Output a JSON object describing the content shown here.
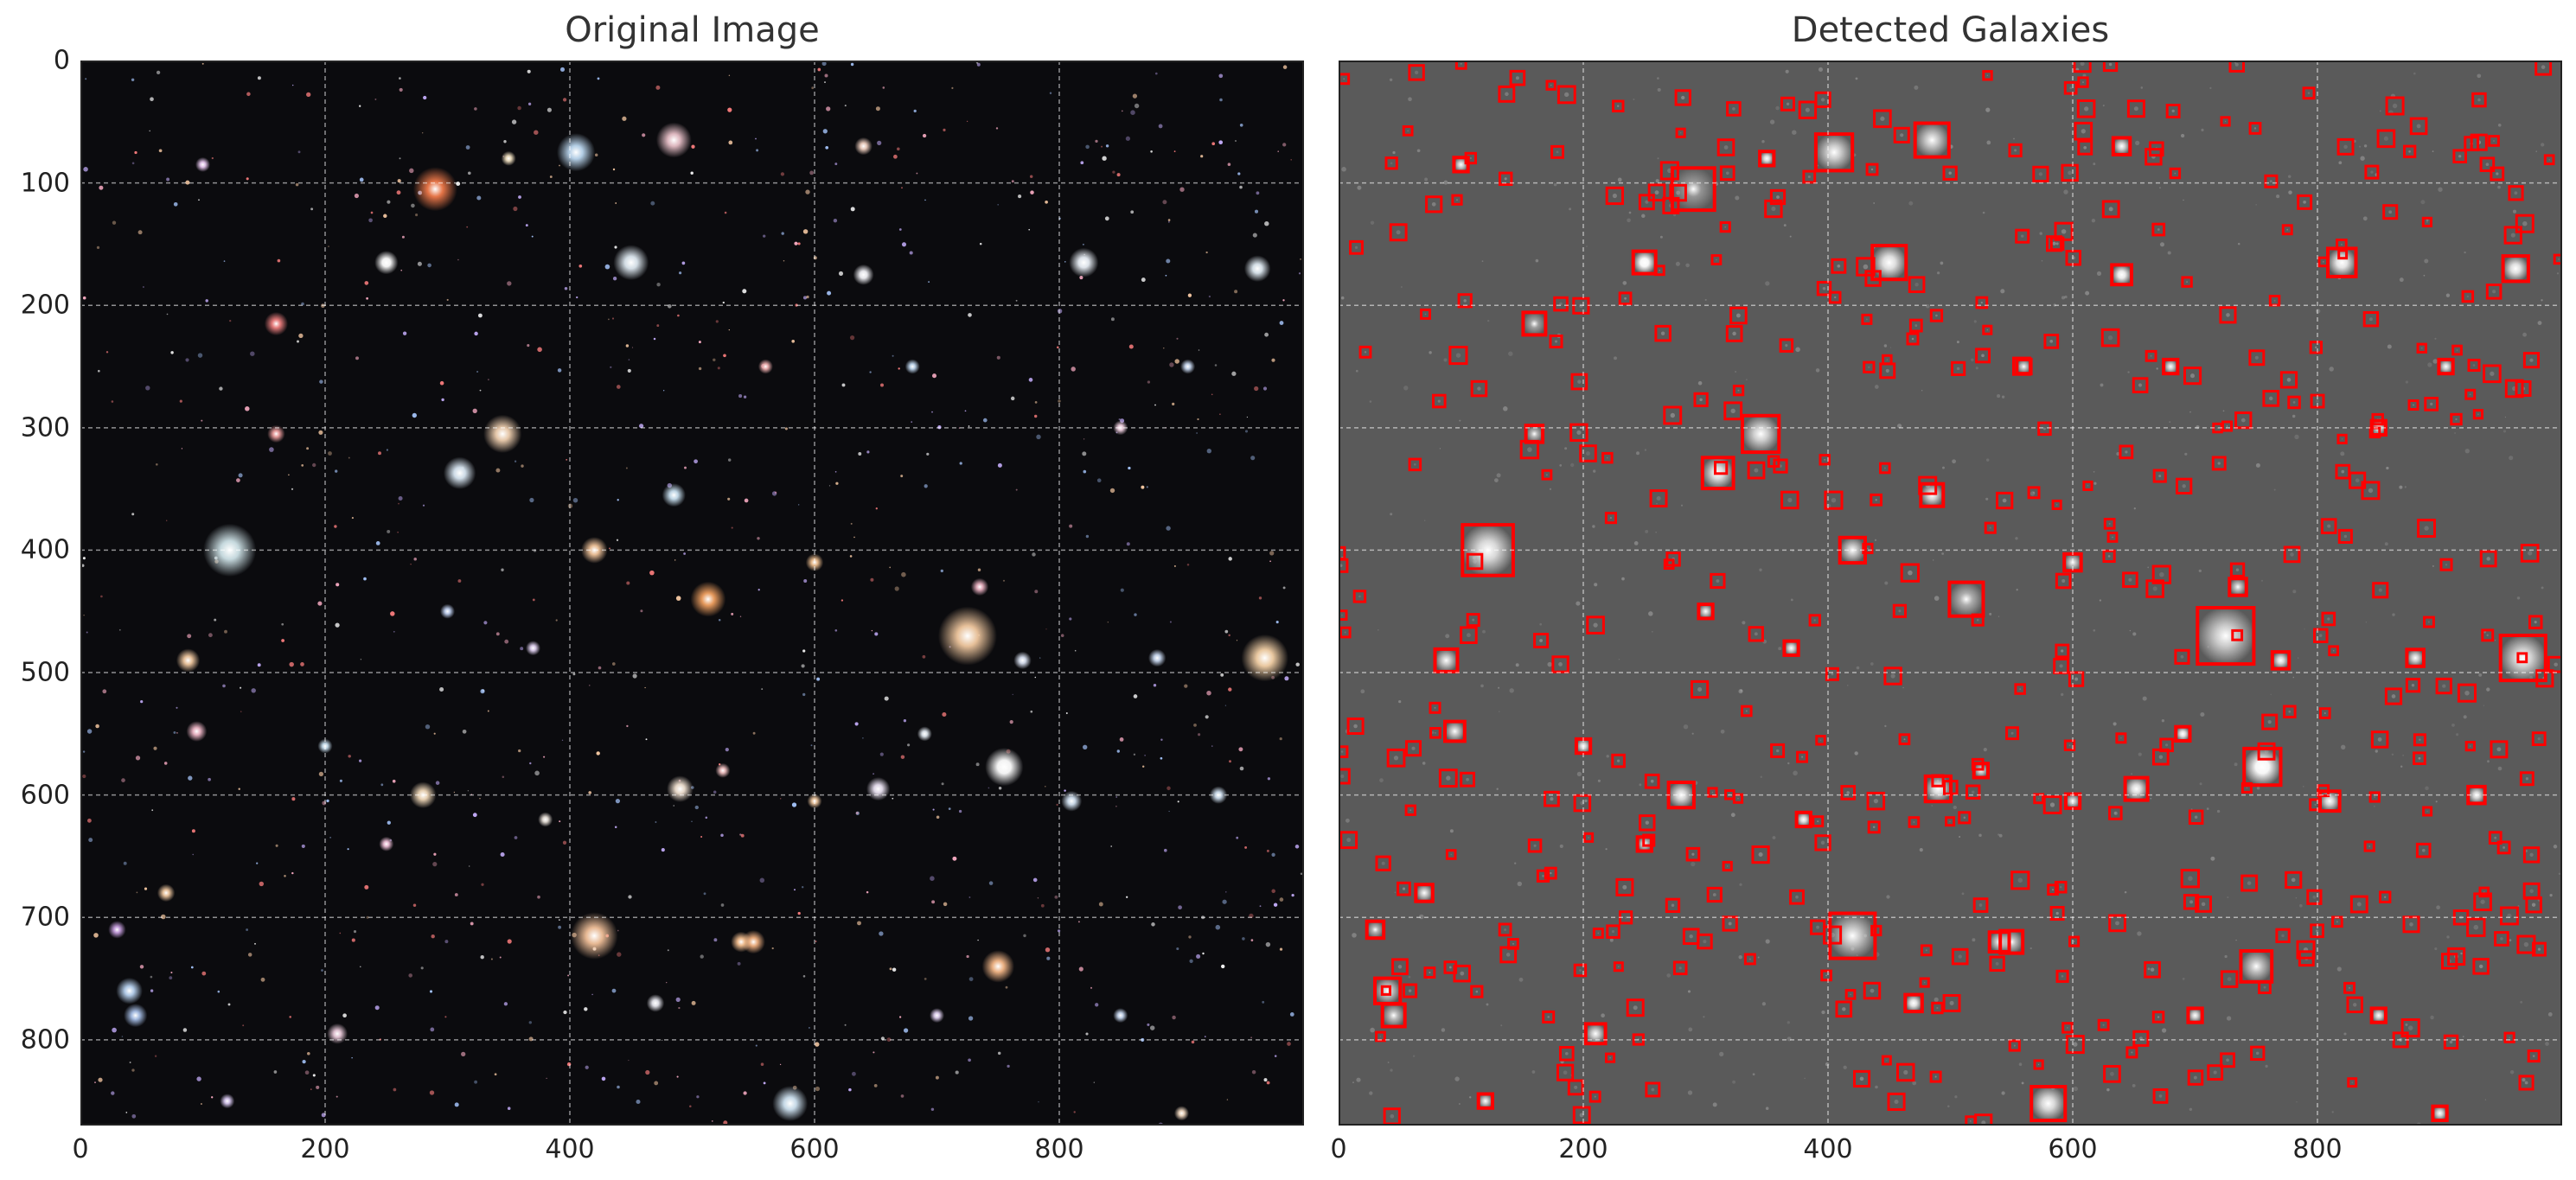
{
  "panels": [
    {
      "title": "Original Image",
      "image_kind": "color",
      "background": "#0b0b0e",
      "xticks": [
        "0",
        "200",
        "400",
        "600",
        "800"
      ],
      "yticks": [
        "0",
        "100",
        "200",
        "300",
        "400",
        "500",
        "600",
        "700",
        "800"
      ]
    },
    {
      "title": "Detected Galaxies",
      "image_kind": "grayscale-with-boxes",
      "background": "#5a5a5a",
      "box_color": "#ff0000",
      "xticks": [
        "0",
        "200",
        "400",
        "600",
        "800"
      ],
      "yticks": []
    }
  ],
  "chart_data": {
    "type": "image",
    "x_range": [
      0,
      1000
    ],
    "y_range": [
      870,
      0
    ],
    "grid": true,
    "galaxies": [
      {
        "x": 122,
        "y": 400,
        "r": 18,
        "color": "#cfe3e8"
      },
      {
        "x": 725,
        "y": 470,
        "r": 20,
        "color": "#f2c9a0"
      },
      {
        "x": 420,
        "y": 715,
        "r": 16,
        "color": "#f2c19a"
      },
      {
        "x": 968,
        "y": 488,
        "r": 16,
        "color": "#f5d2a8"
      },
      {
        "x": 290,
        "y": 105,
        "r": 15,
        "color": "#f07a4a"
      },
      {
        "x": 405,
        "y": 75,
        "r": 13,
        "color": "#bcd8f0"
      },
      {
        "x": 485,
        "y": 65,
        "r": 12,
        "color": "#e8c0c8"
      },
      {
        "x": 755,
        "y": 577,
        "r": 13,
        "color": "#ffffff"
      },
      {
        "x": 345,
        "y": 305,
        "r": 13,
        "color": "#f0d0b0"
      },
      {
        "x": 310,
        "y": 337,
        "r": 11,
        "color": "#d8e6f2"
      },
      {
        "x": 450,
        "y": 165,
        "r": 12,
        "color": "#dde8f0"
      },
      {
        "x": 513,
        "y": 440,
        "r": 12,
        "color": "#f0a060"
      },
      {
        "x": 750,
        "y": 740,
        "r": 11,
        "color": "#f5b888"
      },
      {
        "x": 580,
        "y": 852,
        "r": 12,
        "color": "#cfe3f2"
      },
      {
        "x": 820,
        "y": 165,
        "r": 10,
        "color": "#e8eef5"
      },
      {
        "x": 962,
        "y": 170,
        "r": 9,
        "color": "#dde8f0"
      },
      {
        "x": 280,
        "y": 600,
        "r": 9,
        "color": "#f0d8b8"
      },
      {
        "x": 490,
        "y": 595,
        "r": 9,
        "color": "#f0e0d0"
      },
      {
        "x": 420,
        "y": 400,
        "r": 9,
        "color": "#f2c49a"
      },
      {
        "x": 40,
        "y": 760,
        "r": 9,
        "color": "#b8d2f0"
      },
      {
        "x": 160,
        "y": 215,
        "r": 8,
        "color": "#f08080"
      },
      {
        "x": 250,
        "y": 165,
        "r": 8,
        "color": "#ffffff"
      },
      {
        "x": 485,
        "y": 355,
        "r": 8,
        "color": "#c8e0f0"
      },
      {
        "x": 550,
        "y": 720,
        "r": 8,
        "color": "#f0b080"
      },
      {
        "x": 652,
        "y": 595,
        "r": 8,
        "color": "#e8e0f0"
      },
      {
        "x": 88,
        "y": 490,
        "r": 8,
        "color": "#f0c8a0"
      },
      {
        "x": 45,
        "y": 780,
        "r": 8,
        "color": "#a8c0e8"
      },
      {
        "x": 810,
        "y": 605,
        "r": 7,
        "color": "#d0e0f0"
      },
      {
        "x": 95,
        "y": 548,
        "r": 7,
        "color": "#f0b8c8"
      },
      {
        "x": 540,
        "y": 720,
        "r": 7,
        "color": "#f5c090"
      },
      {
        "x": 640,
        "y": 175,
        "r": 7,
        "color": "#f0f0f5"
      },
      {
        "x": 210,
        "y": 795,
        "r": 7,
        "color": "#e8c8d8"
      },
      {
        "x": 470,
        "y": 770,
        "r": 6,
        "color": "#e8e8f0"
      },
      {
        "x": 640,
        "y": 70,
        "r": 6,
        "color": "#f0d0c0"
      },
      {
        "x": 600,
        "y": 410,
        "r": 6,
        "color": "#f0c090"
      },
      {
        "x": 770,
        "y": 490,
        "r": 6,
        "color": "#d8e0f0"
      },
      {
        "x": 880,
        "y": 488,
        "r": 6,
        "color": "#c8d8f0"
      },
      {
        "x": 160,
        "y": 305,
        "r": 6,
        "color": "#f0a0a0"
      },
      {
        "x": 70,
        "y": 680,
        "r": 6,
        "color": "#f0c8a0"
      },
      {
        "x": 30,
        "y": 710,
        "r": 6,
        "color": "#c8a0e0"
      },
      {
        "x": 930,
        "y": 600,
        "r": 6,
        "color": "#d0e0f0"
      },
      {
        "x": 735,
        "y": 430,
        "r": 6,
        "color": "#e8b0c0"
      },
      {
        "x": 525,
        "y": 580,
        "r": 5,
        "color": "#f0c0c0"
      },
      {
        "x": 370,
        "y": 480,
        "r": 5,
        "color": "#e0d0f0"
      },
      {
        "x": 300,
        "y": 450,
        "r": 5,
        "color": "#c0d0f0"
      },
      {
        "x": 600,
        "y": 605,
        "r": 5,
        "color": "#f0c8a0"
      },
      {
        "x": 690,
        "y": 550,
        "r": 5,
        "color": "#e0e8f0"
      },
      {
        "x": 850,
        "y": 300,
        "r": 5,
        "color": "#f0d0e0"
      },
      {
        "x": 905,
        "y": 250,
        "r": 5,
        "color": "#c8d8f0"
      },
      {
        "x": 100,
        "y": 85,
        "r": 5,
        "color": "#e8c8f0"
      },
      {
        "x": 350,
        "y": 80,
        "r": 5,
        "color": "#f0e0c0"
      },
      {
        "x": 560,
        "y": 250,
        "r": 5,
        "color": "#f0b0b0"
      },
      {
        "x": 680,
        "y": 250,
        "r": 5,
        "color": "#c0d8f0"
      },
      {
        "x": 200,
        "y": 560,
        "r": 5,
        "color": "#c8e0f0"
      },
      {
        "x": 250,
        "y": 640,
        "r": 5,
        "color": "#f0c0d8"
      },
      {
        "x": 700,
        "y": 780,
        "r": 5,
        "color": "#e0d0f0"
      },
      {
        "x": 850,
        "y": 780,
        "r": 5,
        "color": "#c8d8f0"
      },
      {
        "x": 900,
        "y": 860,
        "r": 5,
        "color": "#f0d8c0"
      },
      {
        "x": 120,
        "y": 850,
        "r": 5,
        "color": "#d8c8f0"
      },
      {
        "x": 380,
        "y": 620,
        "r": 5,
        "color": "#e8e0d8"
      }
    ]
  }
}
